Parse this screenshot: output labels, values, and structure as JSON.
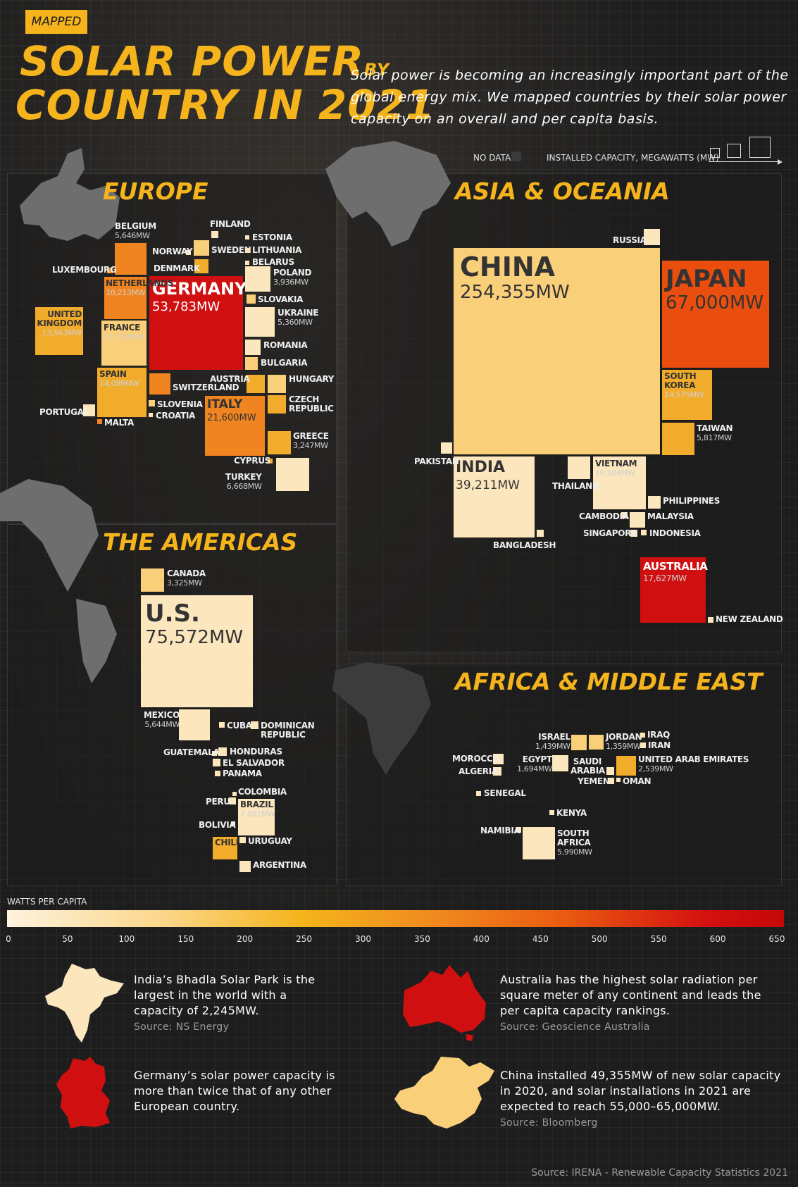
{
  "header": {
    "badge": "MAPPED",
    "title_line1": "SOLAR POWER",
    "title_by": "BY",
    "title_line2": "COUNTRY IN 2021",
    "intro": "Solar power is becoming an increasingly important part of the global energy mix. We mapped countries by their solar power capacity on an overall and per capita basis."
  },
  "legend": {
    "no_data": "NO DATA",
    "capacity": "INSTALLED CAPACITY, MEGAWATTS (MW)"
  },
  "colors": {
    "accent": "#f5b41c",
    "background": "#1d1d1d",
    "tier1": "#fbe6bd",
    "tier2": "#f9cf7a",
    "tier3": "#f2ac2c",
    "tier4": "#f08420",
    "tier5": "#ea4e0e",
    "tier6": "#d01010"
  },
  "regions": {
    "europe": "EUROPE",
    "asia": "ASIA & OCEANIA",
    "americas": "THE AMERICAS",
    "africa": "AFRICA & MIDDLE EAST"
  },
  "chart_data": [
    {
      "type": "treemap-squares",
      "region": "EUROPE",
      "countries": [
        {
          "name": "GERMANY",
          "capacity_mw": 53783,
          "value_label": "53,783MW"
        },
        {
          "name": "ITALY",
          "capacity_mw": 21600,
          "value_label": "21,600MW"
        },
        {
          "name": "SPAIN",
          "capacity_mw": 14089,
          "value_label": "14,089MW"
        },
        {
          "name": "UNITED KINGDOM",
          "capacity_mw": 13563,
          "value_label": "13,563MW"
        },
        {
          "name": "FRANCE",
          "capacity_mw": 11733,
          "value_label": "11,733MW"
        },
        {
          "name": "NETHERLANDS",
          "capacity_mw": 10213,
          "value_label": "10,213MW"
        },
        {
          "name": "TURKEY",
          "capacity_mw": 6668,
          "value_label": "6,668MW"
        },
        {
          "name": "BELGIUM",
          "capacity_mw": 5646,
          "value_label": "5,646MW"
        },
        {
          "name": "UKRAINE",
          "capacity_mw": 5360,
          "value_label": "5,360MW"
        },
        {
          "name": "POLAND",
          "capacity_mw": 3936,
          "value_label": "3,936MW"
        },
        {
          "name": "GREECE",
          "capacity_mw": 3247,
          "value_label": "3,247MW"
        },
        {
          "name": "SWITZERLAND"
        },
        {
          "name": "AUSTRIA"
        },
        {
          "name": "HUNGARY"
        },
        {
          "name": "CZECH REPUBLIC"
        },
        {
          "name": "ROMANIA"
        },
        {
          "name": "BULGARIA"
        },
        {
          "name": "SLOVAKIA"
        },
        {
          "name": "DENMARK"
        },
        {
          "name": "SWEDEN"
        },
        {
          "name": "FINLAND"
        },
        {
          "name": "NORWAY"
        },
        {
          "name": "ESTONIA"
        },
        {
          "name": "LITHUANIA"
        },
        {
          "name": "BELARUS"
        },
        {
          "name": "LUXEMBOURG"
        },
        {
          "name": "PORTUGAL"
        },
        {
          "name": "SLOVENIA"
        },
        {
          "name": "CROATIA"
        },
        {
          "name": "MALTA"
        },
        {
          "name": "CYPRUS"
        }
      ]
    },
    {
      "type": "treemap-squares",
      "region": "ASIA & OCEANIA",
      "countries": [
        {
          "name": "CHINA",
          "capacity_mw": 254355,
          "value_label": "254,355MW"
        },
        {
          "name": "JAPAN",
          "capacity_mw": 67000,
          "value_label": "67,000MW"
        },
        {
          "name": "INDIA",
          "capacity_mw": 39211,
          "value_label": "39,211MW"
        },
        {
          "name": "AUSTRALIA",
          "capacity_mw": 17627,
          "value_label": "17,627MW"
        },
        {
          "name": "VIETNAM",
          "capacity_mw": 16504,
          "value_label": "16,504MW"
        },
        {
          "name": "SOUTH KOREA",
          "capacity_mw": 14575,
          "value_label": "14,575MW"
        },
        {
          "name": "TAIWAN",
          "capacity_mw": 5817,
          "value_label": "5,817MW"
        },
        {
          "name": "RUSSIA"
        },
        {
          "name": "PAKISTAN"
        },
        {
          "name": "THAILAND"
        },
        {
          "name": "BANGLADESH"
        },
        {
          "name": "PHILIPPINES"
        },
        {
          "name": "CAMBODIA"
        },
        {
          "name": "MALAYSIA"
        },
        {
          "name": "SINGAPORE"
        },
        {
          "name": "INDONESIA"
        },
        {
          "name": "NEW ZEALAND"
        }
      ]
    },
    {
      "type": "treemap-squares",
      "region": "THE AMERICAS",
      "countries": [
        {
          "name": "U.S.",
          "capacity_mw": 75572,
          "value_label": "75,572MW"
        },
        {
          "name": "BRAZIL",
          "capacity_mw": 7881,
          "value_label": "7,881MW"
        },
        {
          "name": "MEXICO",
          "capacity_mw": 5644,
          "value_label": "5,644MW"
        },
        {
          "name": "CANADA",
          "capacity_mw": 3325,
          "value_label": "3,325MW"
        },
        {
          "name": "CHILE"
        },
        {
          "name": "CUBA"
        },
        {
          "name": "DOMINICAN REPUBLIC"
        },
        {
          "name": "GUATEMALA"
        },
        {
          "name": "HONDURAS"
        },
        {
          "name": "EL SALVADOR"
        },
        {
          "name": "PANAMA"
        },
        {
          "name": "COLOMBIA"
        },
        {
          "name": "PERU"
        },
        {
          "name": "BOLIVIA"
        },
        {
          "name": "URUGUAY"
        },
        {
          "name": "ARGENTINA"
        }
      ]
    },
    {
      "type": "treemap-squares",
      "region": "AFRICA & MIDDLE EAST",
      "countries": [
        {
          "name": "SOUTH AFRICA",
          "capacity_mw": 5990,
          "value_label": "5,990MW"
        },
        {
          "name": "UNITED ARAB EMIRATES",
          "capacity_mw": 2539,
          "value_label": "2,539MW"
        },
        {
          "name": "EGYPT",
          "capacity_mw": 1694,
          "value_label": "1,694MW"
        },
        {
          "name": "ISRAEL",
          "capacity_mw": 1439,
          "value_label": "1,439MW"
        },
        {
          "name": "JORDAN",
          "capacity_mw": 1359,
          "value_label": "1,359MW"
        },
        {
          "name": "IRAQ"
        },
        {
          "name": "IRAN"
        },
        {
          "name": "SAUDI ARABIA"
        },
        {
          "name": "YEMEN"
        },
        {
          "name": "OMAN"
        },
        {
          "name": "MOROCCO"
        },
        {
          "name": "ALGERIA"
        },
        {
          "name": "SENEGAL"
        },
        {
          "name": "KENYA"
        },
        {
          "name": "NAMIBIA"
        }
      ]
    }
  ],
  "watts_scale": {
    "title": "WATTS PER CAPITA",
    "ticks": [
      "0",
      "50",
      "100",
      "150",
      "200",
      "250",
      "300",
      "350",
      "400",
      "450",
      "500",
      "550",
      "600",
      "650"
    ]
  },
  "facts": [
    {
      "text": "India’s Bhadla Solar Park is the largest in the world with a capacity of 2,245MW.",
      "source": "Source: NS Energy"
    },
    {
      "text": "Australia has the highest solar radiation per square meter of any continent and leads the per capita capacity rankings.",
      "source": "Source: Geoscience Australia"
    },
    {
      "text": "Germany’s solar power capacity is more than twice that of any other European country.",
      "source": ""
    },
    {
      "text": "China installed 49,355MW of new solar capacity in 2020, and solar installations in 2021 are expected to reach 55,000–65,000MW.",
      "source": "Source: Bloomberg"
    }
  ],
  "footer": {
    "source": "Source: IRENA - Renewable Capacity Statistics 2021"
  }
}
